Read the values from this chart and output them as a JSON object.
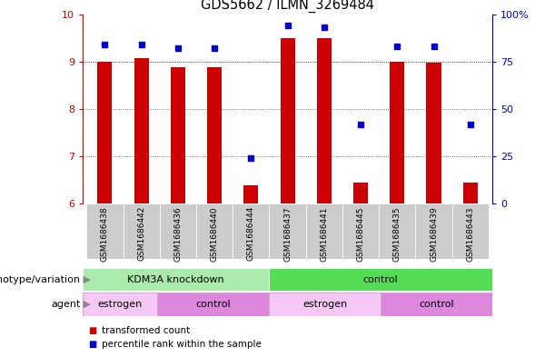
{
  "title": "GDS5662 / ILMN_3269484",
  "samples": [
    "GSM1686438",
    "GSM1686442",
    "GSM1686436",
    "GSM1686440",
    "GSM1686444",
    "GSM1686437",
    "GSM1686441",
    "GSM1686445",
    "GSM1686435",
    "GSM1686439",
    "GSM1686443"
  ],
  "bar_values": [
    9.0,
    9.08,
    8.88,
    8.88,
    6.38,
    9.5,
    9.5,
    6.45,
    9.0,
    8.97,
    6.45
  ],
  "percentile_values": [
    84,
    84,
    82,
    82,
    24,
    94,
    93,
    42,
    83,
    83,
    42
  ],
  "ylim_left": [
    6,
    10
  ],
  "ylim_right": [
    0,
    100
  ],
  "yticks_left": [
    6,
    7,
    8,
    9,
    10
  ],
  "yticks_right": [
    0,
    25,
    50,
    75,
    100
  ],
  "bar_color": "#cc0000",
  "dot_color": "#0000cc",
  "bar_width": 0.4,
  "genotype_groups": [
    {
      "label": "KDM3A knockdown",
      "start": 0,
      "end": 5,
      "color": "#aaeaaa"
    },
    {
      "label": "control",
      "start": 5,
      "end": 11,
      "color": "#55dd55"
    }
  ],
  "agent_groups": [
    {
      "label": "estrogen",
      "start": 0,
      "end": 2,
      "color": "#f5c8f5"
    },
    {
      "label": "control",
      "start": 2,
      "end": 5,
      "color": "#dd88dd"
    },
    {
      "label": "estrogen",
      "start": 5,
      "end": 8,
      "color": "#f5c8f5"
    },
    {
      "label": "control",
      "start": 8,
      "end": 11,
      "color": "#dd88dd"
    }
  ],
  "genotype_label": "genotype/variation",
  "agent_label": "agent",
  "legend_items": [
    {
      "label": "transformed count",
      "color": "#cc0000"
    },
    {
      "label": "percentile rank within the sample",
      "color": "#0000cc"
    }
  ],
  "background_color": "#ffffff",
  "plot_bg_color": "#ffffff",
  "grid_color": "#555555",
  "sample_bg_color": "#cccccc",
  "sample_border_color": "#aaaaaa"
}
